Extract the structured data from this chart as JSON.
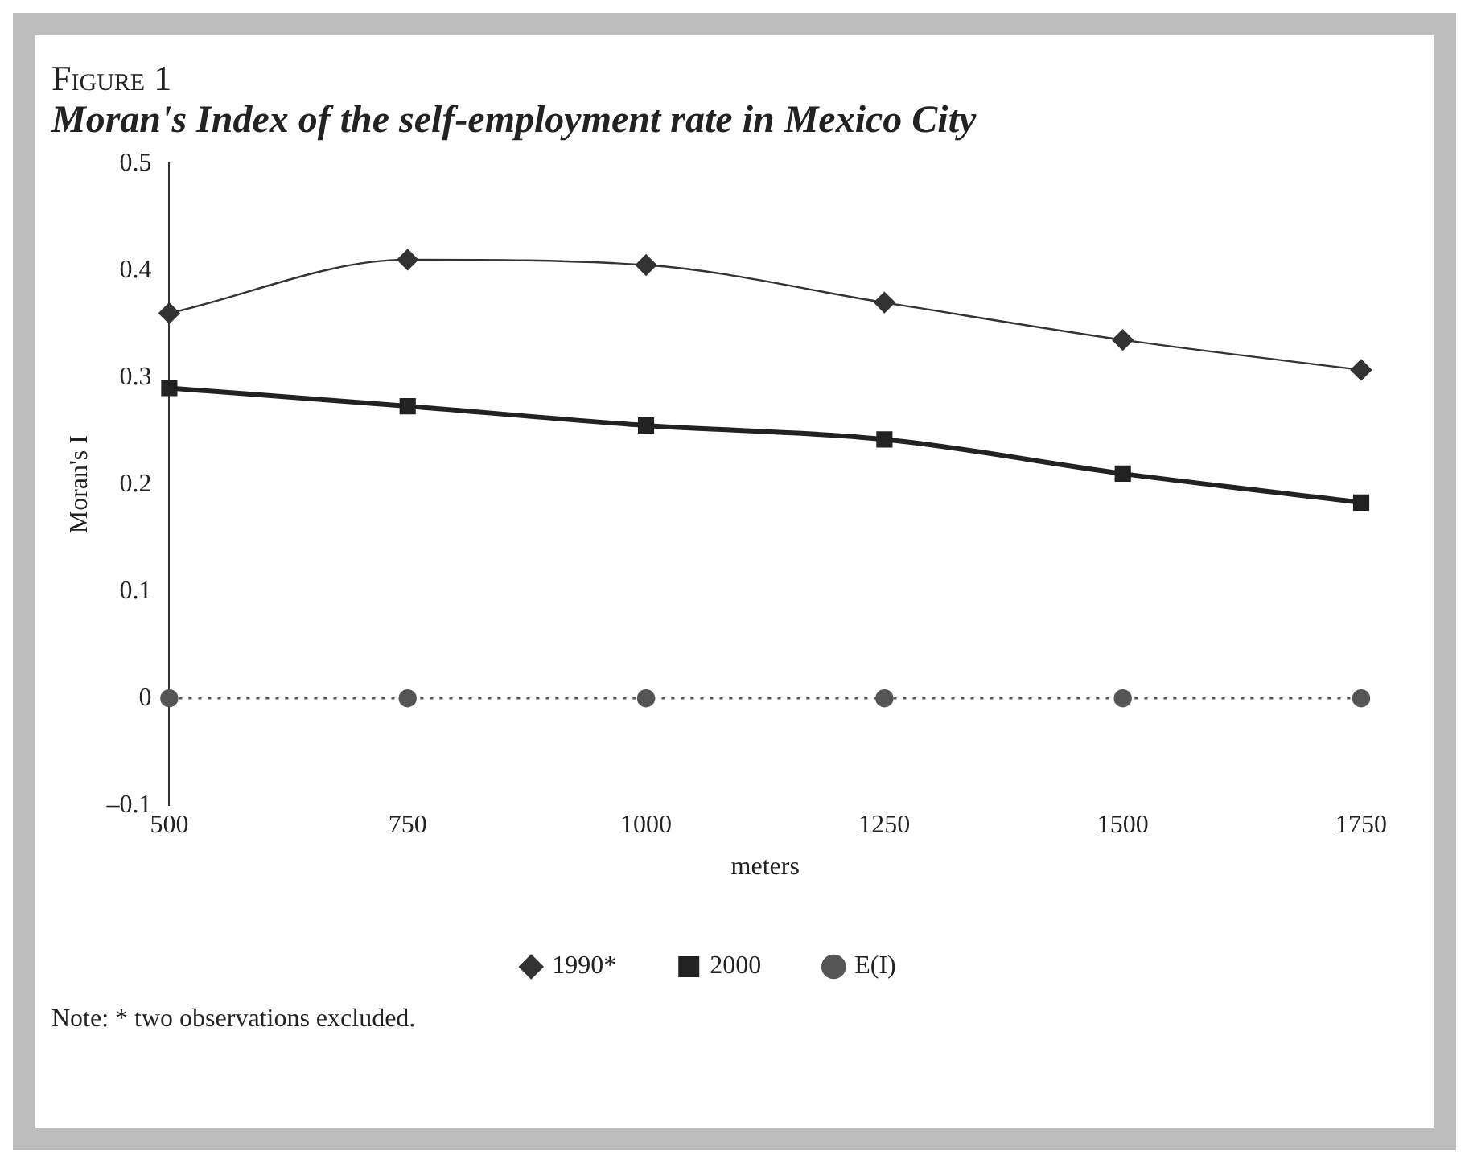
{
  "chart_data": {
    "type": "line",
    "title": "Figure 1",
    "subtitle": "Moran's Index of the self-employment rate in Mexico City",
    "xlabel": "meters",
    "ylabel": "Moran's I",
    "x": [
      500,
      750,
      1000,
      1250,
      1500,
      1750
    ],
    "series": [
      {
        "name": "1990*",
        "color": "#333333",
        "values": [
          0.36,
          0.41,
          0.405,
          0.37,
          0.335,
          0.307
        ],
        "marker": "diamond",
        "line_style": "solid"
      },
      {
        "name": "2000",
        "color": "#222222",
        "values": [
          0.29,
          0.273,
          0.255,
          0.242,
          0.21,
          0.183
        ],
        "marker": "square",
        "line_style": "solid"
      },
      {
        "name": "E(I)",
        "color": "#555555",
        "values": [
          0,
          0,
          0,
          0,
          0,
          0
        ],
        "marker": "circle",
        "line_style": "dotted"
      }
    ],
    "xlim": [
      500,
      1750
    ],
    "xticks": [
      500,
      750,
      1000,
      1250,
      1500,
      1750
    ],
    "ylim": [
      -0.1,
      0.5
    ],
    "yticks": [
      {
        "value": -0.1,
        "label": "–0.1"
      },
      0,
      0.1,
      0.2,
      0.3,
      0.4,
      0.5
    ],
    "grid": false,
    "legend": "bottom",
    "annotations": [
      "Note: * two observations excluded."
    ]
  }
}
